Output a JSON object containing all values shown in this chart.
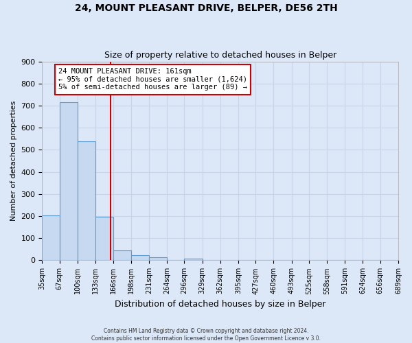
{
  "title": "24, MOUNT PLEASANT DRIVE, BELPER, DE56 2TH",
  "subtitle": "Size of property relative to detached houses in Belper",
  "xlabel": "Distribution of detached houses by size in Belper",
  "ylabel": "Number of detached properties",
  "footer_lines": [
    "Contains HM Land Registry data © Crown copyright and database right 2024.",
    "Contains public sector information licensed under the Open Government Licence v 3.0."
  ],
  "bin_edges": [
    35,
    67,
    100,
    133,
    166,
    198,
    231,
    264,
    296,
    329,
    362,
    395,
    427,
    460,
    493,
    525,
    558,
    591,
    624,
    656,
    689
  ],
  "bin_labels": [
    "35sqm",
    "67sqm",
    "100sqm",
    "133sqm",
    "166sqm",
    "198sqm",
    "231sqm",
    "264sqm",
    "296sqm",
    "329sqm",
    "362sqm",
    "395sqm",
    "427sqm",
    "460sqm",
    "493sqm",
    "525sqm",
    "558sqm",
    "591sqm",
    "624sqm",
    "656sqm",
    "689sqm"
  ],
  "counts": [
    203,
    715,
    537,
    196,
    45,
    22,
    13,
    0,
    7,
    0,
    0,
    0,
    0,
    0,
    0,
    0,
    0,
    0,
    0,
    0
  ],
  "bar_color": "#c6d9f0",
  "bar_edge_color": "#5b9bd5",
  "property_line_x": 161,
  "property_line_color": "#cc0000",
  "annotation_text": "24 MOUNT PLEASANT DRIVE: 161sqm\n← 95% of detached houses are smaller (1,624)\n5% of semi-detached houses are larger (89) →",
  "annotation_box_color": "#ffffff",
  "annotation_box_edge_color": "#cc0000",
  "ylim": [
    0,
    900
  ],
  "yticks": [
    0,
    100,
    200,
    300,
    400,
    500,
    600,
    700,
    800,
    900
  ],
  "grid_color": "#c8d4e8",
  "background_color": "#dce8f8"
}
